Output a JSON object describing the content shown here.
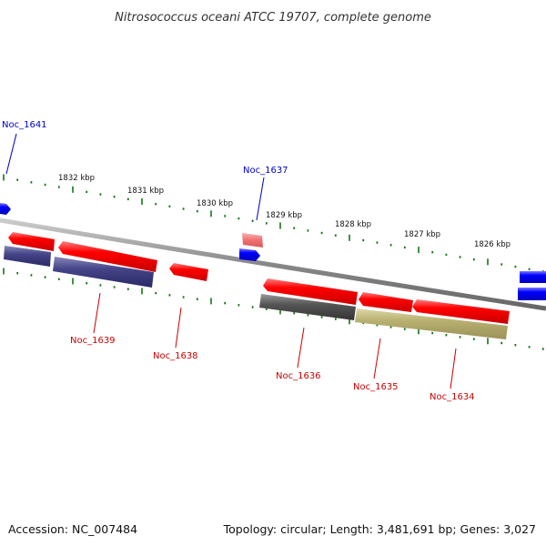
{
  "title": "Nitrosococcus oceani ATCC 19707, complete genome",
  "accession": "Accession: NC_007484",
  "topology": "Topology: circular; Length: 3,481,691 bp; Genes: 3,027",
  "colors": {
    "strand_plus": "#0000ff",
    "strand_minus": "#ff0000",
    "backbone": "#999999",
    "tick": "#117711",
    "label_plus": "#0000cc",
    "label_minus": "#cc0000",
    "track_navy": "#444488",
    "track_gray": "#555555",
    "track_olive": "#b8b070"
  },
  "scale_labels": [
    "1832 kbp",
    "1831 kbp",
    "1830 kbp",
    "1829 kbp",
    "1828 kbp",
    "1827 kbp",
    "1826 kbp"
  ],
  "genes": [
    {
      "label": "Noc_1641",
      "strand": "plus"
    },
    {
      "label": "Noc_1637",
      "strand": "plus"
    },
    {
      "label": "Noc_1639",
      "strand": "minus"
    },
    {
      "label": "Noc_1638",
      "strand": "minus"
    },
    {
      "label": "Noc_1636",
      "strand": "minus"
    },
    {
      "label": "Noc_1635",
      "strand": "minus"
    },
    {
      "label": "Noc_1634",
      "strand": "minus"
    }
  ]
}
